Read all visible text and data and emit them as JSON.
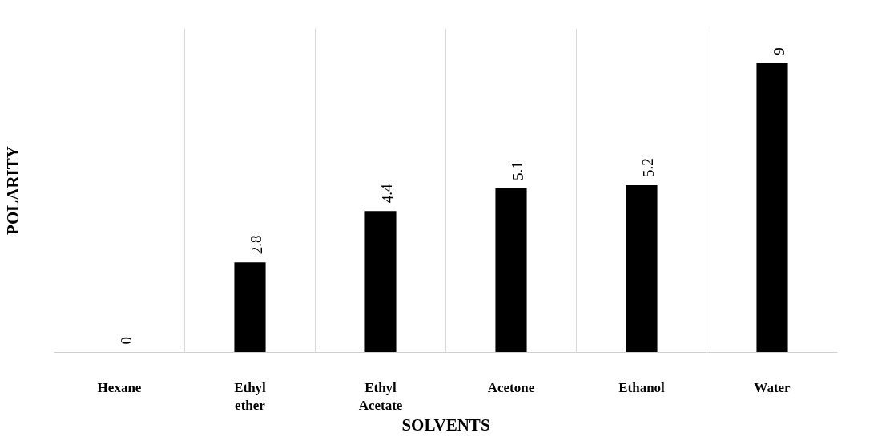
{
  "chart_data": {
    "type": "bar",
    "xlabel": "SOLVENTS",
    "ylabel": "POLARITY",
    "categories": [
      "Hexane",
      "Ethyl\nether",
      "Ethyl\nAcetate",
      "Acetone",
      "Ethanol",
      "Water"
    ],
    "values": [
      0,
      2.8,
      4.4,
      5.1,
      5.2,
      9
    ],
    "color": "#000000",
    "data_labels": true,
    "grid": "x"
  }
}
